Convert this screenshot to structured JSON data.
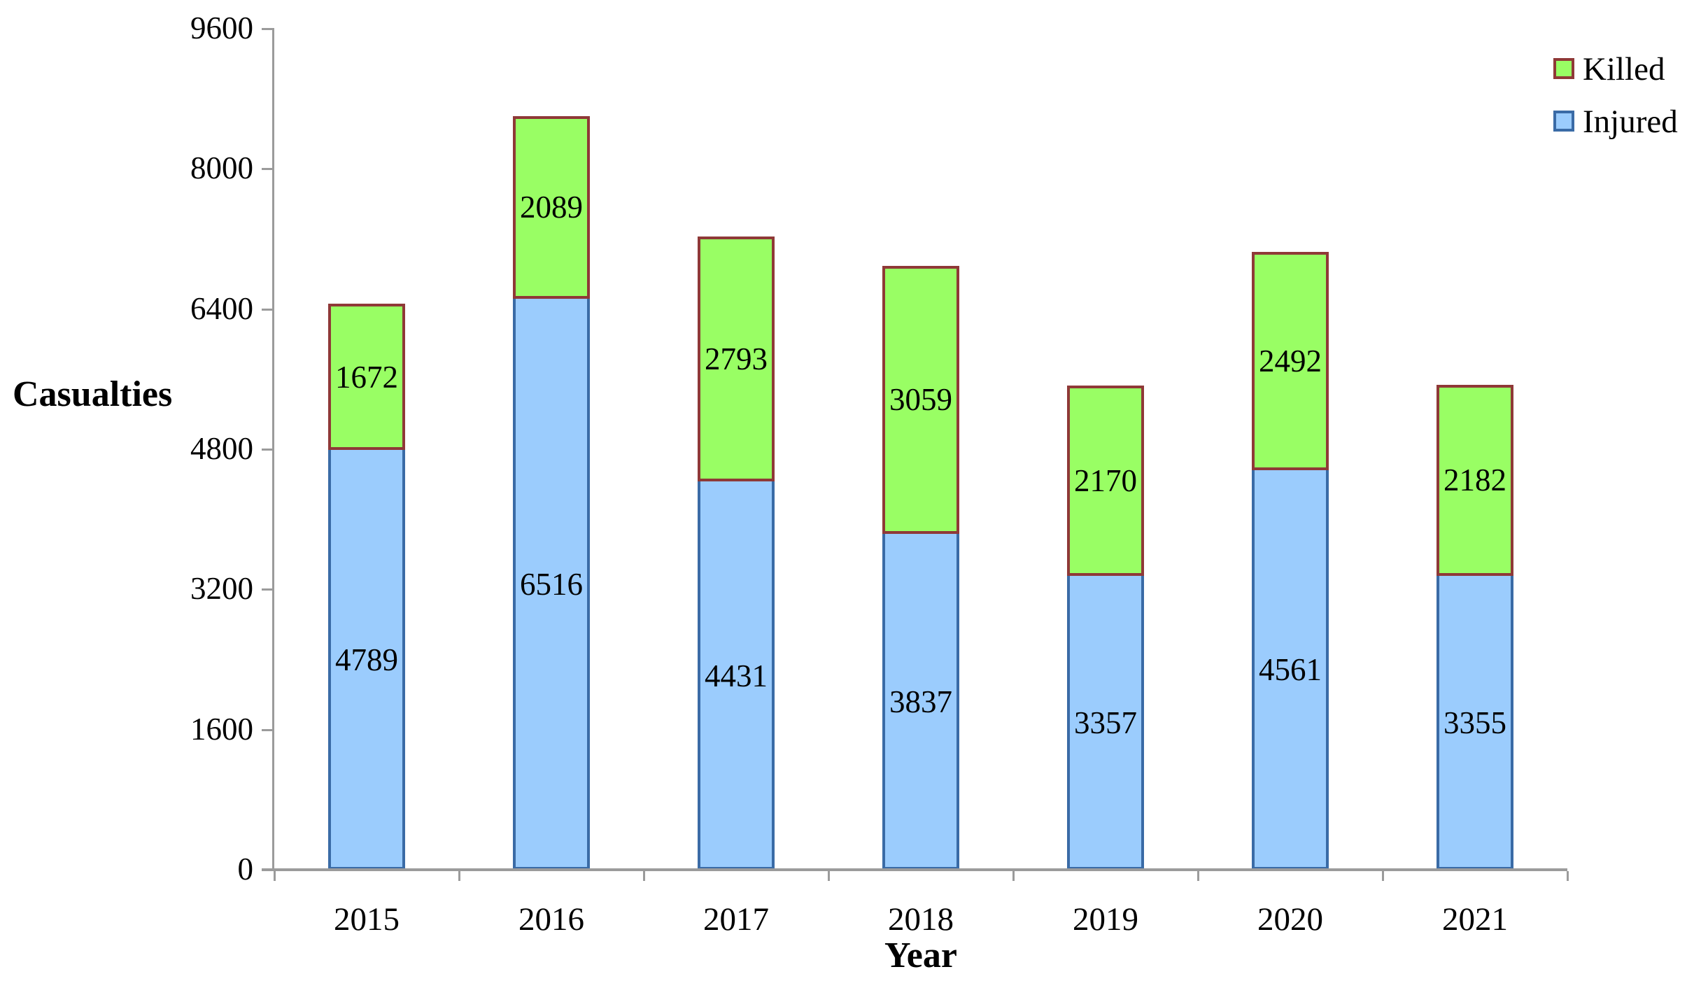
{
  "chart_data": {
    "type": "bar",
    "stacked": true,
    "title": "",
    "xlabel": "Year",
    "ylabel": "Casualties",
    "categories": [
      "2015",
      "2016",
      "2017",
      "2018",
      "2019",
      "2020",
      "2021"
    ],
    "series": [
      {
        "name": "Injured",
        "values": [
          4789,
          6516,
          4431,
          3837,
          3357,
          4561,
          3355
        ],
        "fill_color": "#9BCCFD",
        "border_color": "#3A6BA6"
      },
      {
        "name": "Killed",
        "values": [
          1672,
          2089,
          2793,
          3059,
          2170,
          2492,
          2182
        ],
        "fill_color": "#99FE64",
        "border_color": "#8F3937"
      }
    ],
    "ylim": [
      0,
      9600
    ],
    "yticks": [
      0,
      1600,
      3200,
      4800,
      6400,
      8000,
      9600
    ],
    "grid": false,
    "legend_position": "top-right",
    "axis_color": "#9B9B9B",
    "value_labels_shown": true
  },
  "legend": {
    "items": [
      {
        "label": "Killed"
      },
      {
        "label": "Injured"
      }
    ]
  }
}
